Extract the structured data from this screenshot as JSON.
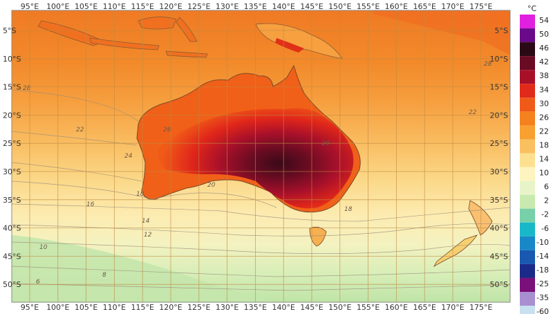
{
  "map": {
    "lon_labels": [
      "95°E",
      "100°E",
      "105°E",
      "110°E",
      "115°E",
      "120°E",
      "125°E",
      "130°E",
      "135°E",
      "140°E",
      "145°E",
      "150°E",
      "155°E",
      "160°E",
      "165°E",
      "170°E",
      "175°E"
    ],
    "lat_labels": [
      "5°S",
      "10°S",
      "15°S",
      "20°S",
      "25°S",
      "30°S",
      "35°S",
      "40°S",
      "45°S",
      "50°S"
    ],
    "contour_labels": [
      "28",
      "24",
      "22",
      "20",
      "18",
      "16",
      "14",
      "12",
      "10",
      "8",
      "6",
      "26",
      "20",
      "28",
      "18",
      "22"
    ]
  },
  "legend": {
    "unit": "°C",
    "bands": [
      {
        "label": "54",
        "color": "#e020e0"
      },
      {
        "label": "50",
        "color": "#6a0a8a"
      },
      {
        "label": "46",
        "color": "#2a0a14"
      },
      {
        "label": "42",
        "color": "#6a0a24"
      },
      {
        "label": "38",
        "color": "#a8102a"
      },
      {
        "label": "34",
        "color": "#e02a1a"
      },
      {
        "label": "30",
        "color": "#f05a18"
      },
      {
        "label": "26",
        "color": "#f5801e"
      },
      {
        "label": "22",
        "color": "#f8a030"
      },
      {
        "label": "18",
        "color": "#fac060"
      },
      {
        "label": "14",
        "color": "#fce090"
      },
      {
        "label": "10",
        "color": "#fdf4c0"
      },
      {
        "label": "6",
        "color": "#e8f4c8"
      },
      {
        "label": "2",
        "color": "#c8eab0"
      },
      {
        "label": "-2",
        "color": "#78d0a8"
      },
      {
        "label": "-6",
        "color": "#18b8c8"
      },
      {
        "label": "-10",
        "color": "#1888c8"
      },
      {
        "label": "-14",
        "color": "#1858b0"
      },
      {
        "label": "-18",
        "color": "#1a2a88"
      },
      {
        "label": "-25",
        "color": "#7a107a"
      },
      {
        "label": "-35",
        "color": "#a890d0"
      },
      {
        "label": "-60",
        "color": "#c8e0f0"
      }
    ]
  }
}
